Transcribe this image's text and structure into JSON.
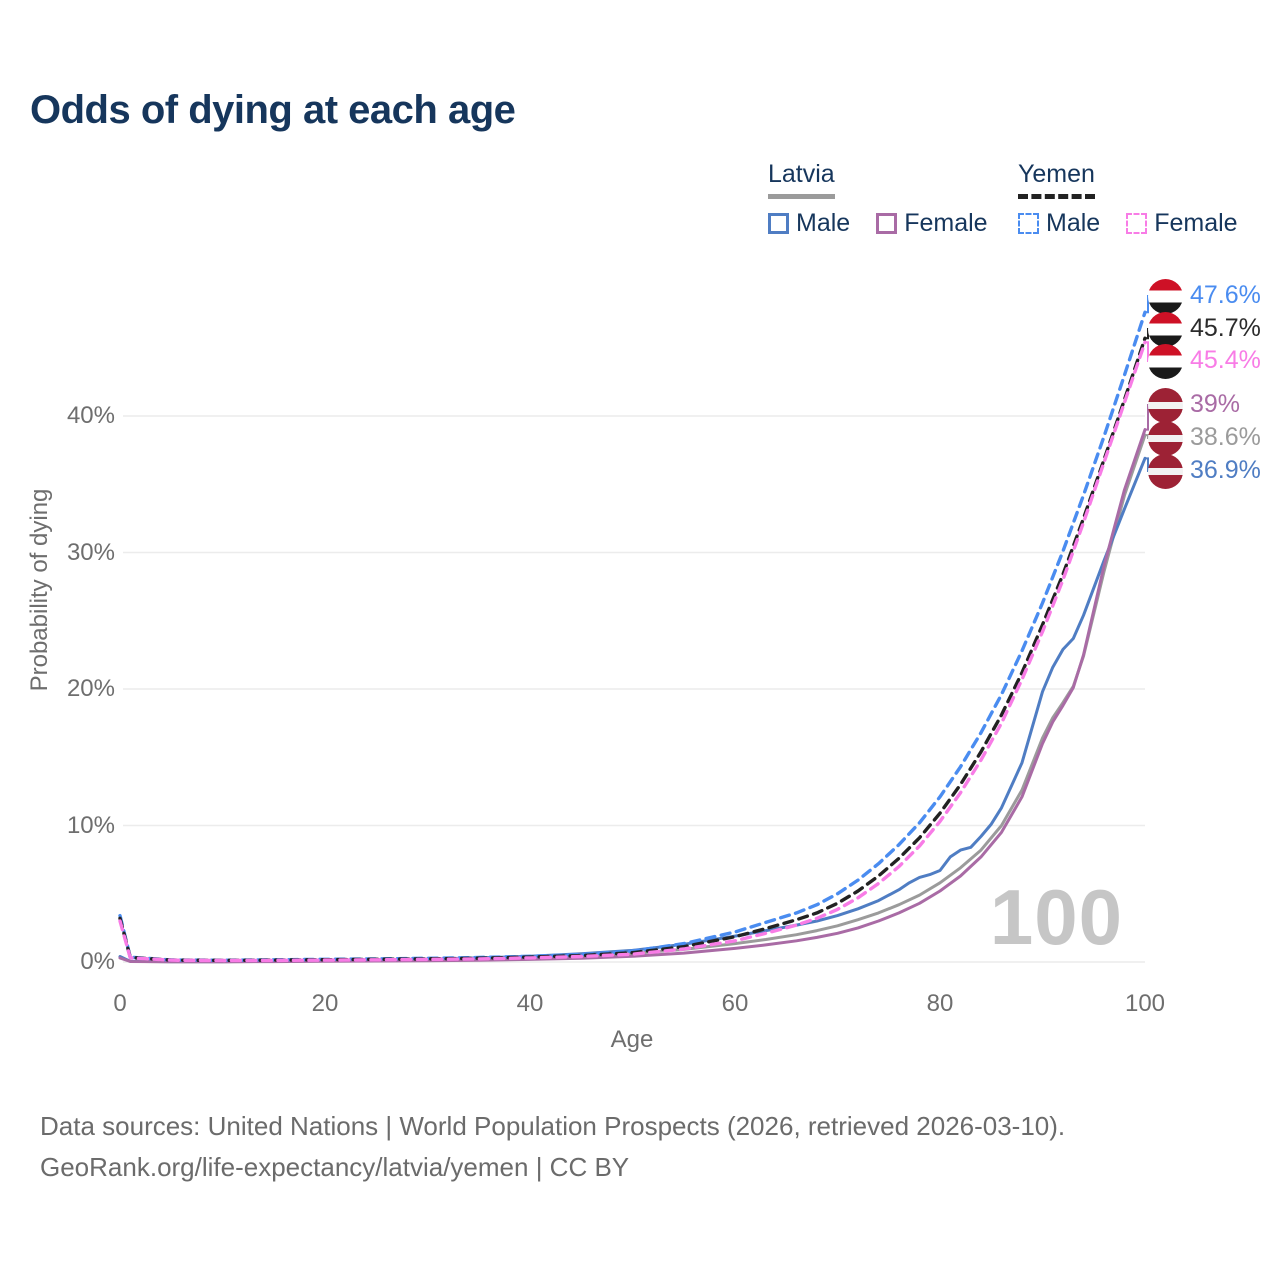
{
  "title": "Odds of dying at each age",
  "watermark_age": "100",
  "legend": {
    "groups": [
      {
        "country": "Latvia",
        "line_style": "solid",
        "items": [
          {
            "label": "Male"
          },
          {
            "label": "Female"
          }
        ]
      },
      {
        "country": "Yemen",
        "line_style": "dashed",
        "items": [
          {
            "label": "Male"
          },
          {
            "label": "Female"
          }
        ]
      }
    ]
  },
  "footer": {
    "line1": "Data sources: United Nations | World Population Prospects (2026, retrieved 2026-03-10).",
    "line2": "GeoRank.org/life-expectancy/latvia/yemen | CC BY"
  },
  "colors": {
    "title_text": "#16365c",
    "axis_text": "#6e6e6e",
    "gridline": "#ececec",
    "watermark": "#c6c6c6",
    "yemen_flag_red": "#ce1126",
    "yemen_flag_black": "#1a1a1a",
    "latvia_flag_red": "#9d2235"
  },
  "chart_data": {
    "type": "line",
    "title": "Odds of dying at each age",
    "xlabel": "Age",
    "ylabel": "Probability of dying",
    "x_ticks": [
      0,
      20,
      40,
      60,
      80,
      100
    ],
    "y_tick_labels": [
      "0%",
      "10%",
      "20%",
      "30%",
      "40%"
    ],
    "y_tick_values": [
      0,
      10,
      20,
      30,
      40
    ],
    "xlim": [
      0,
      100
    ],
    "ylim": [
      0,
      49
    ],
    "grid": "horizontal-only",
    "legend_position": "top-right",
    "series": [
      {
        "id": "latvia-total",
        "name": "Latvia Both sexes",
        "country": "Latvia",
        "sex": "Both",
        "color": "#9b9b9b",
        "dash": false,
        "end_value": 38.6,
        "end_label": "38.6%",
        "flag": "latvia-flag-icon",
        "points": [
          [
            0,
            0.35
          ],
          [
            1,
            0.045
          ],
          [
            5,
            0.025
          ],
          [
            10,
            0.025
          ],
          [
            15,
            0.05
          ],
          [
            20,
            0.09
          ],
          [
            25,
            0.12
          ],
          [
            30,
            0.16
          ],
          [
            35,
            0.22
          ],
          [
            40,
            0.3
          ],
          [
            45,
            0.43
          ],
          [
            50,
            0.62
          ],
          [
            55,
            0.92
          ],
          [
            60,
            1.35
          ],
          [
            63,
            1.65
          ],
          [
            66,
            2.0
          ],
          [
            68,
            2.3
          ],
          [
            70,
            2.65
          ],
          [
            72,
            3.1
          ],
          [
            74,
            3.6
          ],
          [
            76,
            4.2
          ],
          [
            78,
            4.9
          ],
          [
            80,
            5.8
          ],
          [
            82,
            6.9
          ],
          [
            84,
            8.2
          ],
          [
            86,
            10.0
          ],
          [
            88,
            12.6
          ],
          [
            90,
            16.4
          ],
          [
            91,
            17.9
          ],
          [
            92,
            19.0
          ],
          [
            93,
            20.2
          ],
          [
            94,
            22.4
          ],
          [
            96,
            28.6
          ],
          [
            98,
            34.2
          ],
          [
            100,
            38.6
          ]
        ]
      },
      {
        "id": "latvia-male",
        "name": "Latvia Male",
        "country": "Latvia",
        "sex": "Male",
        "color": "#4f7dc3",
        "dash": false,
        "end_value": 36.9,
        "end_label": "36.9%",
        "flag": "latvia-flag-icon",
        "points": [
          [
            0,
            0.4
          ],
          [
            1,
            0.05
          ],
          [
            5,
            0.03
          ],
          [
            10,
            0.03
          ],
          [
            15,
            0.07
          ],
          [
            20,
            0.12
          ],
          [
            25,
            0.16
          ],
          [
            30,
            0.21
          ],
          [
            35,
            0.3
          ],
          [
            40,
            0.42
          ],
          [
            45,
            0.6
          ],
          [
            50,
            0.85
          ],
          [
            55,
            1.3
          ],
          [
            60,
            1.9
          ],
          [
            63,
            2.3
          ],
          [
            66,
            2.7
          ],
          [
            68,
            3.0
          ],
          [
            70,
            3.4
          ],
          [
            72,
            3.9
          ],
          [
            74,
            4.5
          ],
          [
            76,
            5.3
          ],
          [
            77,
            5.8
          ],
          [
            78,
            6.2
          ],
          [
            79,
            6.4
          ],
          [
            80,
            6.7
          ],
          [
            81,
            7.7
          ],
          [
            82,
            8.2
          ],
          [
            83,
            8.4
          ],
          [
            84,
            9.2
          ],
          [
            85,
            10.1
          ],
          [
            86,
            11.3
          ],
          [
            88,
            14.6
          ],
          [
            90,
            19.8
          ],
          [
            91,
            21.6
          ],
          [
            92,
            22.9
          ],
          [
            93,
            23.7
          ],
          [
            94,
            25.4
          ],
          [
            96,
            29.4
          ],
          [
            98,
            33.2
          ],
          [
            100,
            36.9
          ]
        ]
      },
      {
        "id": "latvia-female",
        "name": "Latvia Female",
        "country": "Latvia",
        "sex": "Female",
        "color": "#a96ba5",
        "dash": false,
        "end_value": 39.0,
        "end_label": "39%",
        "flag": "latvia-flag-icon",
        "points": [
          [
            0,
            0.3
          ],
          [
            1,
            0.04
          ],
          [
            5,
            0.02
          ],
          [
            10,
            0.02
          ],
          [
            15,
            0.03
          ],
          [
            20,
            0.05
          ],
          [
            25,
            0.07
          ],
          [
            30,
            0.09
          ],
          [
            35,
            0.13
          ],
          [
            40,
            0.19
          ],
          [
            45,
            0.28
          ],
          [
            50,
            0.42
          ],
          [
            55,
            0.65
          ],
          [
            60,
            1.0
          ],
          [
            63,
            1.25
          ],
          [
            66,
            1.55
          ],
          [
            68,
            1.8
          ],
          [
            70,
            2.1
          ],
          [
            72,
            2.5
          ],
          [
            74,
            3.0
          ],
          [
            76,
            3.6
          ],
          [
            78,
            4.3
          ],
          [
            80,
            5.2
          ],
          [
            82,
            6.3
          ],
          [
            84,
            7.7
          ],
          [
            86,
            9.5
          ],
          [
            88,
            12.1
          ],
          [
            90,
            16.0
          ],
          [
            91,
            17.6
          ],
          [
            92,
            18.8
          ],
          [
            93,
            20.1
          ],
          [
            94,
            22.5
          ],
          [
            96,
            29.0
          ],
          [
            98,
            34.6
          ],
          [
            100,
            39.0
          ]
        ]
      },
      {
        "id": "yemen-male",
        "name": "Yemen Male",
        "country": "Yemen",
        "sex": "Male",
        "color": "#4a8cf0",
        "dash": true,
        "end_value": 47.6,
        "end_label": "47.6%",
        "flag": "yemen-flag-icon",
        "points": [
          [
            0,
            3.4
          ],
          [
            1,
            0.35
          ],
          [
            5,
            0.15
          ],
          [
            10,
            0.13
          ],
          [
            15,
            0.16
          ],
          [
            20,
            0.2
          ],
          [
            25,
            0.23
          ],
          [
            30,
            0.27
          ],
          [
            35,
            0.33
          ],
          [
            40,
            0.42
          ],
          [
            45,
            0.55
          ],
          [
            50,
            0.8
          ],
          [
            55,
            1.35
          ],
          [
            60,
            2.2
          ],
          [
            63,
            2.9
          ],
          [
            66,
            3.6
          ],
          [
            68,
            4.2
          ],
          [
            70,
            5.0
          ],
          [
            72,
            6.0
          ],
          [
            74,
            7.2
          ],
          [
            76,
            8.6
          ],
          [
            78,
            10.2
          ],
          [
            80,
            12.1
          ],
          [
            82,
            14.3
          ],
          [
            84,
            16.8
          ],
          [
            86,
            19.6
          ],
          [
            88,
            22.8
          ],
          [
            90,
            26.3
          ],
          [
            92,
            30.1
          ],
          [
            94,
            34.2
          ],
          [
            96,
            38.5
          ],
          [
            98,
            43.0
          ],
          [
            100,
            47.6
          ]
        ]
      },
      {
        "id": "yemen-total",
        "name": "Yemen Both sexes",
        "country": "Yemen",
        "sex": "Both",
        "color": "#222222",
        "dash": true,
        "end_value": 45.7,
        "end_label": "45.7%",
        "flag": "yemen-flag-icon",
        "points": [
          [
            0,
            3.2
          ],
          [
            1,
            0.33
          ],
          [
            5,
            0.14
          ],
          [
            10,
            0.12
          ],
          [
            15,
            0.14
          ],
          [
            20,
            0.17
          ],
          [
            25,
            0.2
          ],
          [
            30,
            0.23
          ],
          [
            35,
            0.28
          ],
          [
            40,
            0.36
          ],
          [
            45,
            0.47
          ],
          [
            50,
            0.68
          ],
          [
            55,
            1.12
          ],
          [
            60,
            1.85
          ],
          [
            63,
            2.45
          ],
          [
            66,
            3.1
          ],
          [
            68,
            3.6
          ],
          [
            70,
            4.3
          ],
          [
            72,
            5.2
          ],
          [
            74,
            6.3
          ],
          [
            76,
            7.6
          ],
          [
            78,
            9.1
          ],
          [
            80,
            10.9
          ],
          [
            82,
            13.0
          ],
          [
            84,
            15.4
          ],
          [
            86,
            18.1
          ],
          [
            88,
            21.2
          ],
          [
            90,
            24.7
          ],
          [
            92,
            28.4
          ],
          [
            94,
            32.5
          ],
          [
            96,
            36.8
          ],
          [
            98,
            41.2
          ],
          [
            100,
            45.7
          ]
        ]
      },
      {
        "id": "yemen-female",
        "name": "Yemen Female",
        "country": "Yemen",
        "sex": "Female",
        "color": "#f87ce6",
        "dash": true,
        "end_value": 45.4,
        "end_label": "45.4%",
        "flag": "yemen-flag-icon",
        "points": [
          [
            0,
            3.0
          ],
          [
            1,
            0.3
          ],
          [
            5,
            0.13
          ],
          [
            10,
            0.11
          ],
          [
            15,
            0.12
          ],
          [
            20,
            0.14
          ],
          [
            25,
            0.16
          ],
          [
            30,
            0.19
          ],
          [
            35,
            0.23
          ],
          [
            40,
            0.3
          ],
          [
            45,
            0.4
          ],
          [
            50,
            0.57
          ],
          [
            55,
            0.95
          ],
          [
            60,
            1.55
          ],
          [
            63,
            2.1
          ],
          [
            66,
            2.7
          ],
          [
            68,
            3.2
          ],
          [
            70,
            3.85
          ],
          [
            72,
            4.7
          ],
          [
            74,
            5.75
          ],
          [
            76,
            7.0
          ],
          [
            78,
            8.5
          ],
          [
            80,
            10.3
          ],
          [
            82,
            12.4
          ],
          [
            84,
            14.8
          ],
          [
            86,
            17.5
          ],
          [
            88,
            20.7
          ],
          [
            90,
            24.2
          ],
          [
            92,
            28.0
          ],
          [
            94,
            32.2
          ],
          [
            96,
            36.6
          ],
          [
            98,
            41.0
          ],
          [
            100,
            45.4
          ]
        ]
      }
    ]
  }
}
